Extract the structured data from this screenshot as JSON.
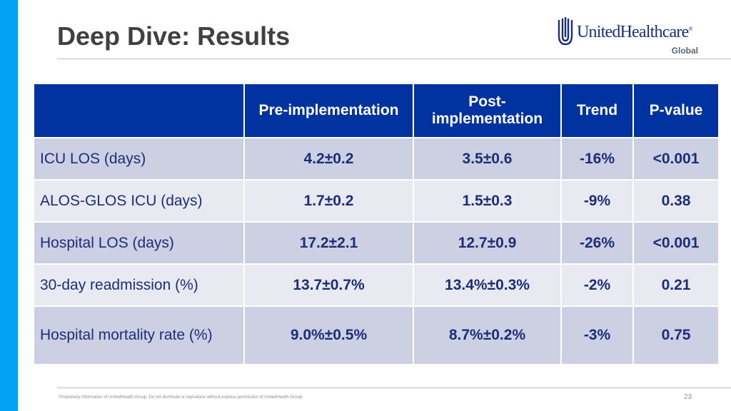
{
  "slide": {
    "title": "Deep Dive: Results",
    "footer": "Proprietary information of UnitedHealth Group. Do not distribute or reproduce without express permission of UnitedHealth Group.",
    "page_number": "23"
  },
  "logo": {
    "name": "UnitedHealthcare",
    "registered_mark": "®",
    "sub": "Global",
    "color": "#1b2e7a"
  },
  "colors": {
    "accent_bar": "#00a3f5",
    "header_bg": "#0033a0",
    "row_band_a": "#cdd0e3",
    "row_band_b": "#e9eaf1",
    "cell_text": "#1b2e7a"
  },
  "table": {
    "headers": [
      "",
      "Pre-implementation",
      "Post-\nimplementation",
      "Trend",
      "P-value"
    ],
    "rows": [
      [
        "ICU LOS (days)",
        "4.2±0.2",
        "3.5±0.6",
        "-16%",
        "<0.001"
      ],
      [
        "ALOS-GLOS ICU (days)",
        "1.7±0.2",
        "1.5±0.3",
        "-9%",
        "0.38"
      ],
      [
        "Hospital LOS (days)",
        "17.2±2.1",
        "12.7±0.9",
        "-26%",
        "<0.001"
      ],
      [
        "30-day readmission (%)",
        "13.7±0.7%",
        "13.4%±0.3%",
        "-2%",
        "0.21"
      ],
      [
        "Hospital mortality rate (%)",
        "9.0%±0.5%",
        "8.7%±0.2%",
        "-3%",
        "0.75"
      ]
    ]
  }
}
